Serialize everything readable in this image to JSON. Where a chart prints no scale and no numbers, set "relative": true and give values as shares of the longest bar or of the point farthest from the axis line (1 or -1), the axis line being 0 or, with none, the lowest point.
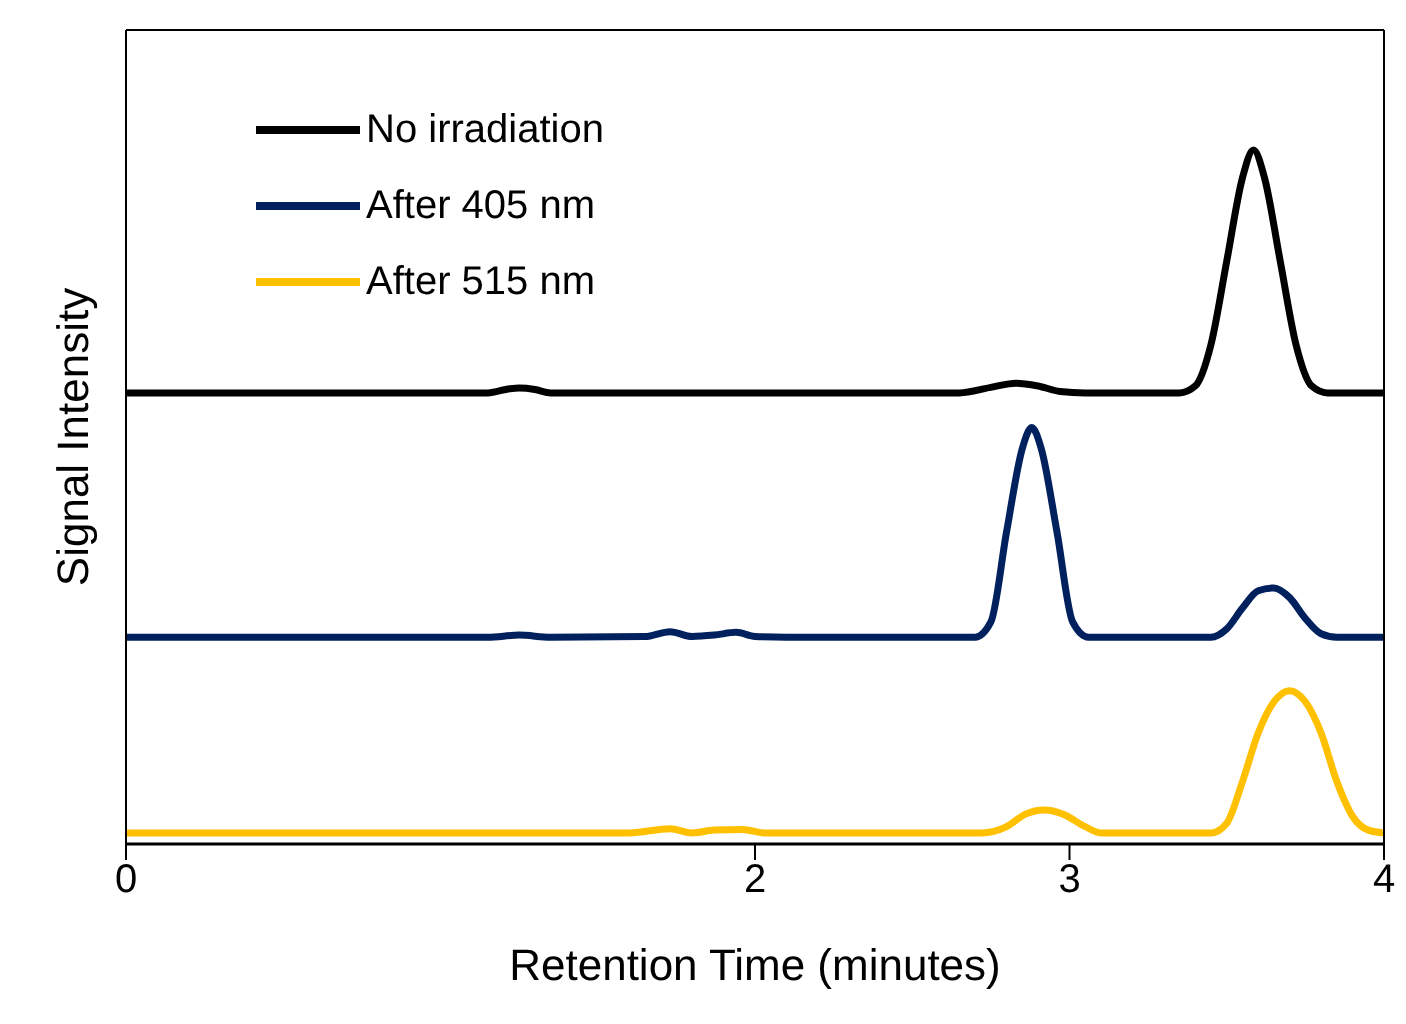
{
  "chart_data": {
    "type": "line",
    "xlabel": "Retention Time (minutes)",
    "ylabel": "Signal Intensity",
    "relative": true,
    "xlim": [
      0,
      4
    ],
    "xticks": [
      0,
      2,
      3,
      4
    ],
    "legend": "top left",
    "grid": false,
    "marker": "none",
    "line_style": "solid",
    "series": [
      {
        "name": "No irradiation",
        "color": "#000000",
        "x": [
          0,
          1.15,
          1.22,
          1.25,
          1.3,
          1.35,
          2,
          2.65,
          2.75,
          2.83,
          2.9,
          2.97,
          3.05,
          3.35,
          3.4,
          3.45,
          3.5,
          3.55,
          3.585,
          3.62,
          3.67,
          3.72,
          3.77,
          3.82,
          4
        ],
        "values": [
          0.65,
          0.65,
          0.656,
          0.657,
          0.655,
          0.65,
          0.65,
          0.65,
          0.658,
          0.664,
          0.66,
          0.652,
          0.65,
          0.65,
          0.66,
          0.72,
          0.84,
          0.96,
          1.0,
          0.96,
          0.84,
          0.72,
          0.66,
          0.65,
          0.65
        ]
      },
      {
        "name": "After 405 nm",
        "color": "#00215e",
        "x": [
          0,
          1.15,
          1.25,
          1.35,
          1.65,
          1.73,
          1.8,
          1.87,
          1.94,
          2.0,
          2.1,
          2.7,
          2.75,
          2.8,
          2.85,
          2.88,
          2.91,
          2.96,
          3.01,
          3.06,
          3.45,
          3.5,
          3.55,
          3.6,
          3.65,
          3.7,
          3.75,
          3.8,
          3.85,
          4
        ],
        "values": [
          0.298,
          0.298,
          0.301,
          0.298,
          0.299,
          0.306,
          0.299,
          0.301,
          0.305,
          0.299,
          0.298,
          0.298,
          0.32,
          0.45,
          0.57,
          0.6,
          0.57,
          0.45,
          0.32,
          0.298,
          0.298,
          0.31,
          0.34,
          0.365,
          0.369,
          0.355,
          0.325,
          0.303,
          0.298,
          0.298
        ]
      },
      {
        "name": "After 515 nm",
        "color": "#ffc000",
        "x": [
          0,
          1.6,
          1.73,
          1.8,
          1.87,
          1.96,
          2.03,
          2.2,
          2.72,
          2.8,
          2.86,
          2.92,
          2.98,
          3.05,
          3.1,
          3.45,
          3.5,
          3.55,
          3.6,
          3.65,
          3.7,
          3.75,
          3.8,
          3.85,
          3.9,
          3.95,
          4
        ],
        "values": [
          0.016,
          0.016,
          0.022,
          0.016,
          0.02,
          0.021,
          0.016,
          0.016,
          0.016,
          0.025,
          0.043,
          0.049,
          0.043,
          0.025,
          0.016,
          0.016,
          0.03,
          0.09,
          0.16,
          0.205,
          0.221,
          0.205,
          0.16,
          0.09,
          0.04,
          0.02,
          0.016
        ]
      }
    ]
  }
}
